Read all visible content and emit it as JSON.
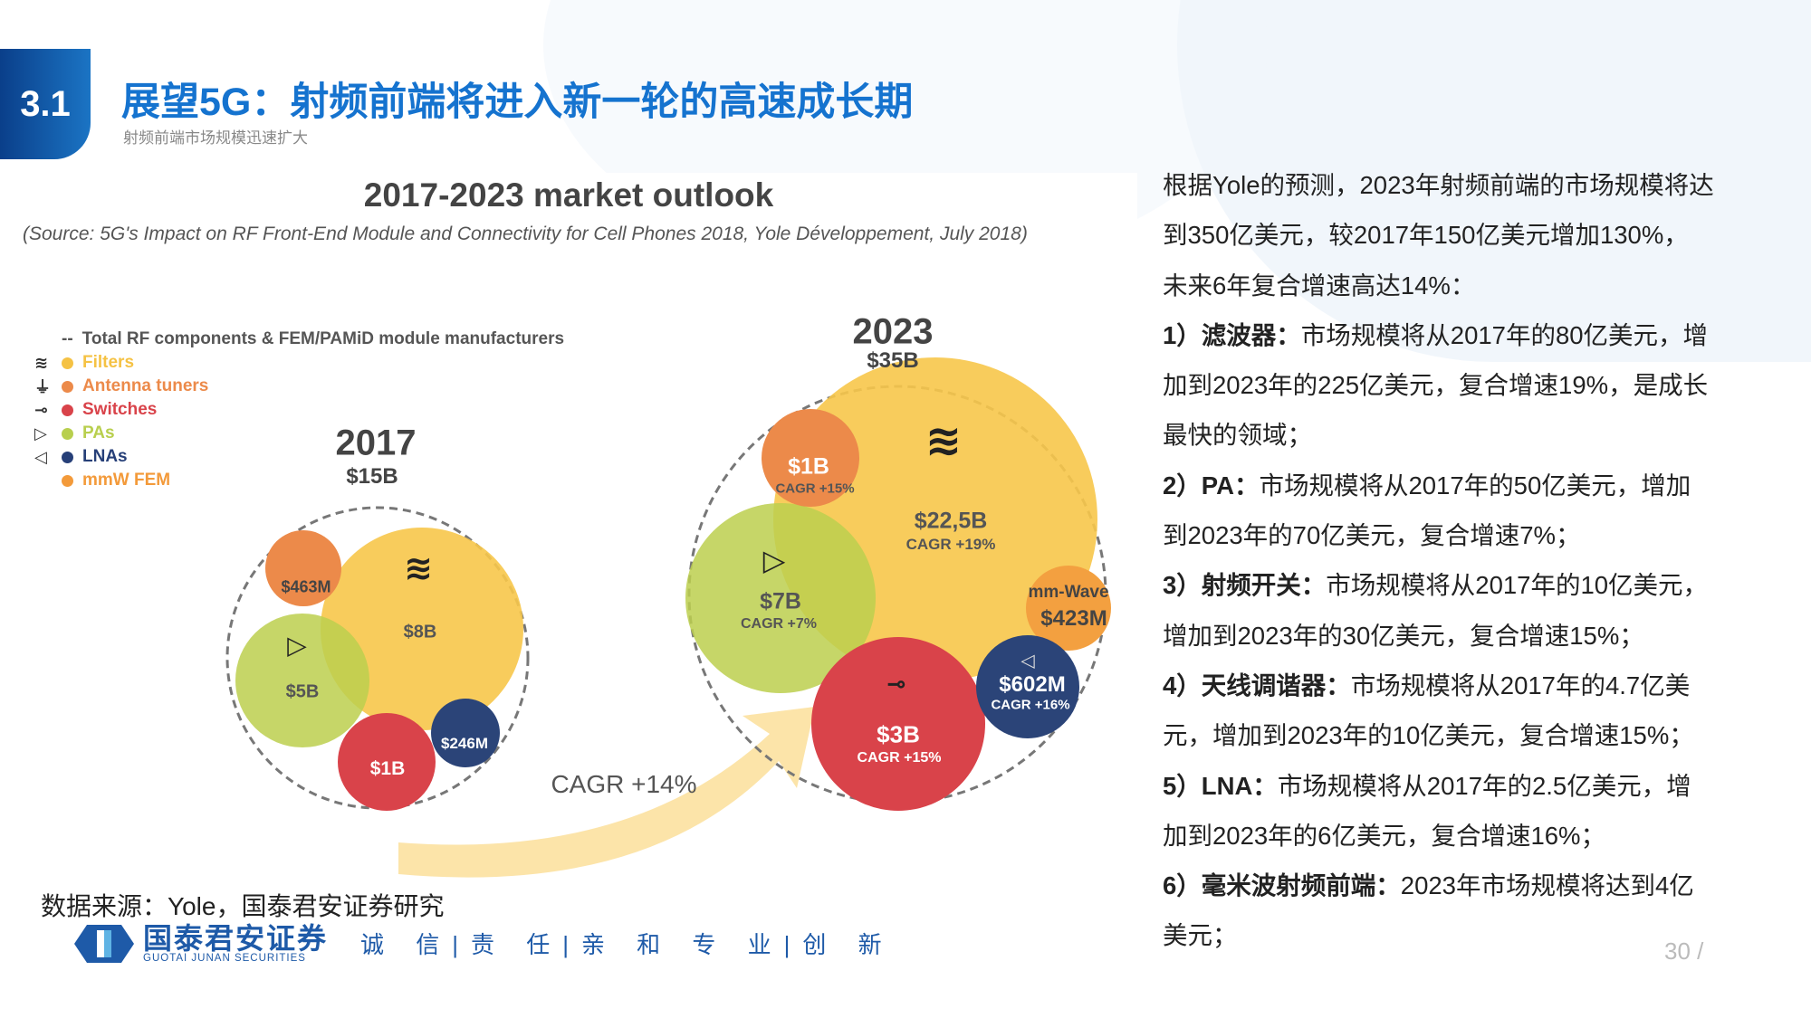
{
  "header": {
    "section": "3.1",
    "title": "展望5G：射频前端将进入新一轮的高速成长期",
    "subtitle": "射频前端市场规模迅速扩大"
  },
  "figure": {
    "title": "2017-2023 market outlook",
    "source": "(Source: 5G's Impact on RF Front-End Module and Connectivity for Cell Phones 2018, Yole Développement, July 2018)",
    "legend": [
      {
        "icon": "dash-icon",
        "glyph": "--",
        "label": "Total RF components & FEM/PAMiD module manufacturers",
        "color": "#555555"
      },
      {
        "icon": "filter-icon",
        "glyph": "≋",
        "label": "Filters",
        "color": "#f5c244"
      },
      {
        "icon": "antenna-tuner-icon",
        "glyph": "⏚",
        "label": "Antenna tuners",
        "color": "#ec8a4a"
      },
      {
        "icon": "switch-icon",
        "glyph": "⊸",
        "label": "Switches",
        "color": "#d9434a"
      },
      {
        "icon": "pa-amplifier-icon",
        "glyph": "▷",
        "label": "PAs",
        "color": "#b8cf4e"
      },
      {
        "icon": "lna-amplifier-icon",
        "glyph": "◁",
        "label": "LNAs",
        "color": "#263f78"
      },
      {
        "icon": "",
        "glyph": "",
        "label": "mmW FEM",
        "color": "#f39a3a"
      }
    ],
    "y2017": {
      "year": "2017",
      "total": "$15B",
      "filters": "$8B",
      "antenna": "$463M",
      "pa": "$5B",
      "switches": "$1B",
      "lna": "$246M"
    },
    "y2023": {
      "year": "2023",
      "total": "$35B",
      "filters": "$22,5B",
      "filters_cagr": "CAGR +19%",
      "antenna": "$1B",
      "antenna_cagr": "CAGR +15%",
      "pa": "$7B",
      "pa_cagr": "CAGR +7%",
      "switches": "$3B",
      "switches_cagr": "CAGR +15%",
      "lna": "$602M",
      "lna_cagr": "CAGR +16%",
      "mmw_label": "mm-Wave",
      "mmw": "$423M"
    },
    "arrow_cagr": "CAGR +14%",
    "colors": {
      "filters": "#f7c64a",
      "antenna": "#ec8a4a",
      "switches": "#d9434a",
      "pa": "#bccf4e",
      "lna": "#2b4478",
      "mmw": "#f3a040"
    }
  },
  "body": {
    "lines": [
      {
        "b": "",
        "t": "根据Yole的预测，2023年射频前端的市场规模将达"
      },
      {
        "b": "",
        "t": "到350亿美元，较2017年150亿美元增加130%，"
      },
      {
        "b": "",
        "t": "未来6年复合增速高达14%："
      },
      {
        "b": "1）滤波器：",
        "t": "市场规模将从2017年的80亿美元，增"
      },
      {
        "b": "",
        "t": "加到2023年的225亿美元，复合增速19%，是成长"
      },
      {
        "b": "",
        "t": "最快的领域；"
      },
      {
        "b": "2）PA：",
        "t": "市场规模将从2017年的50亿美元，增加"
      },
      {
        "b": "",
        "t": "到2023年的70亿美元，复合增速7%；"
      },
      {
        "b": "3）射频开关：",
        "t": "市场规模将从2017年的10亿美元，"
      },
      {
        "b": "",
        "t": "增加到2023年的30亿美元，复合增速15%；"
      },
      {
        "b": "4）天线调谐器：",
        "t": "市场规模将从2017年的4.7亿美"
      },
      {
        "b": "",
        "t": "元，增加到2023年的10亿美元，复合增速15%；"
      },
      {
        "b": "5）LNA：",
        "t": "市场规模将从2017年的2.5亿美元，增"
      },
      {
        "b": "",
        "t": "加到2023年的6亿美元，复合增速16%；"
      },
      {
        "b": "6）毫米波射频前端：",
        "t": "2023年市场规模将达到4亿"
      },
      {
        "b": "",
        "t": "美元；"
      }
    ]
  },
  "footer": {
    "source": "数据来源：Yole，国泰君安证券研究",
    "brand": "国泰君安证券",
    "brand_en": "GUOTAI JUNAN SECURITIES",
    "motto": "诚 信|责 任|亲 和  专 业|创 新",
    "page": "30 /"
  }
}
